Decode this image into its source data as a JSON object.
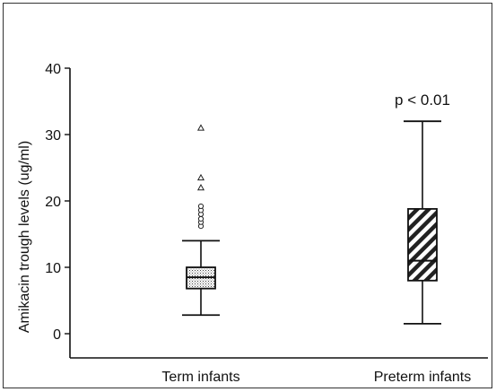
{
  "chart_data": {
    "type": "box",
    "ylabel": "Amikacin trough levels (ug/ml)",
    "xlabel": "",
    "ylim": [
      0,
      40
    ],
    "yticks": [
      0,
      10,
      20,
      30,
      40
    ],
    "categories": [
      "Term infants",
      "Preterm infants"
    ],
    "boxes": [
      {
        "category": "Term infants",
        "whisker_low": 2.8,
        "q1": 6.8,
        "median": 8.5,
        "q3": 10,
        "whisker_high": 14,
        "fill": "dotted",
        "outliers_circle": [
          16.2,
          16.8,
          17.3,
          18.0,
          18.6,
          19.2
        ],
        "outliers_triangle": [
          22,
          23.5,
          31
        ]
      },
      {
        "category": "Preterm infants",
        "whisker_low": 1.5,
        "q1": 8,
        "median": 11,
        "q3": 18.8,
        "whisker_high": 32,
        "fill": "hatched",
        "outliers_circle": [],
        "outliers_triangle": []
      }
    ],
    "annotations": [
      {
        "text": "p < 0.01",
        "category": "Preterm infants"
      }
    ],
    "grid": false
  }
}
